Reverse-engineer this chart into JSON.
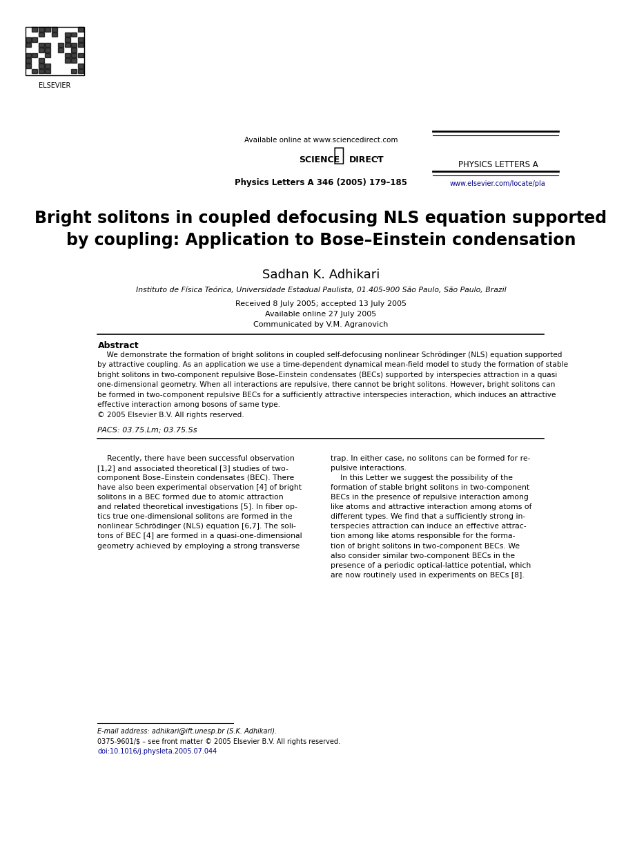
{
  "bg_color": "#ffffff",
  "page_width": 9.07,
  "page_height": 12.38,
  "header": {
    "available_online": "Available online at www.sciencedirect.com",
    "journal_name": "Physics Letters A 346 (2005) 179–185",
    "physics_letters_a": "PHYSICS LETTERS A",
    "url": "www.elsevier.com/locate/pla",
    "url_color": "#00008B"
  },
  "title": "Bright solitons in coupled defocusing NLS equation supported\nby coupling: Application to Bose–Einstein condensation",
  "author": "Sadhan K. Adhikari",
  "affiliation": "Instituto de Física Teórica, Universidade Estadual Paulista, 01.405-900 São Paulo, São Paulo, Brazil",
  "received": "Received 8 July 2005; accepted 13 July 2005",
  "available": "Available online 27 July 2005",
  "communicated": "Communicated by V.M. Agranovich",
  "abstract_title": "Abstract",
  "pacs": "PACS: 03.75.Lm; 03.75.Ss",
  "abstract_lines": [
    "    We demonstrate the formation of bright solitons in coupled self-defocusing nonlinear Schrödinger (NLS) equation supported",
    "by attractive coupling. As an application we use a time-dependent dynamical mean-field model to study the formation of stable",
    "bright solitons in two-component repulsive Bose–Einstein condensates (BECs) supported by interspecies attraction in a quasi",
    "one-dimensional geometry. When all interactions are repulsive, there cannot be bright solitons. However, bright solitons can",
    "be formed in two-component repulsive BECs for a sufficiently attractive interspecies interaction, which induces an attractive",
    "effective interaction among bosons of same type.",
    "© 2005 Elsevier B.V. All rights reserved."
  ],
  "col1_lines": [
    "    Recently, there have been successful observation",
    "[1,2] and associated theoretical [3] studies of two-",
    "component Bose–Einstein condensates (BEC). There",
    "have also been experimental observation [4] of bright",
    "solitons in a BEC formed due to atomic attraction",
    "and related theoretical investigations [5]. In fiber op-",
    "tics true one-dimensional solitons are formed in the",
    "nonlinear Schrödinger (NLS) equation [6,7]. The soli-",
    "tons of BEC [4] are formed in a quasi-one-dimensional",
    "geometry achieved by employing a strong transverse"
  ],
  "col2_lines": [
    "trap. In either case, no solitons can be formed for re-",
    "pulsive interactions.",
    "    In this Letter we suggest the possibility of the",
    "formation of stable bright solitons in two-component",
    "BECs in the presence of repulsive interaction among",
    "like atoms and attractive interaction among atoms of",
    "different types. We find that a sufficiently strong in-",
    "terspecies attraction can induce an effective attrac-",
    "tion among like atoms responsible for the forma-",
    "tion of bright solitons in two-component BECs. We",
    "also consider similar two-component BECs in the",
    "presence of a periodic optical-lattice potential, which",
    "are now routinely used in experiments on BECs [8]."
  ],
  "footer_email": "E-mail address: adhikari@ift.unesp.br (S.K. Adhikari).",
  "footer_issn": "0375-9601/$ – see front matter © 2005 Elsevier B.V. All rights reserved.",
  "footer_doi": "doi:10.1016/j.physleta.2005.07.044"
}
